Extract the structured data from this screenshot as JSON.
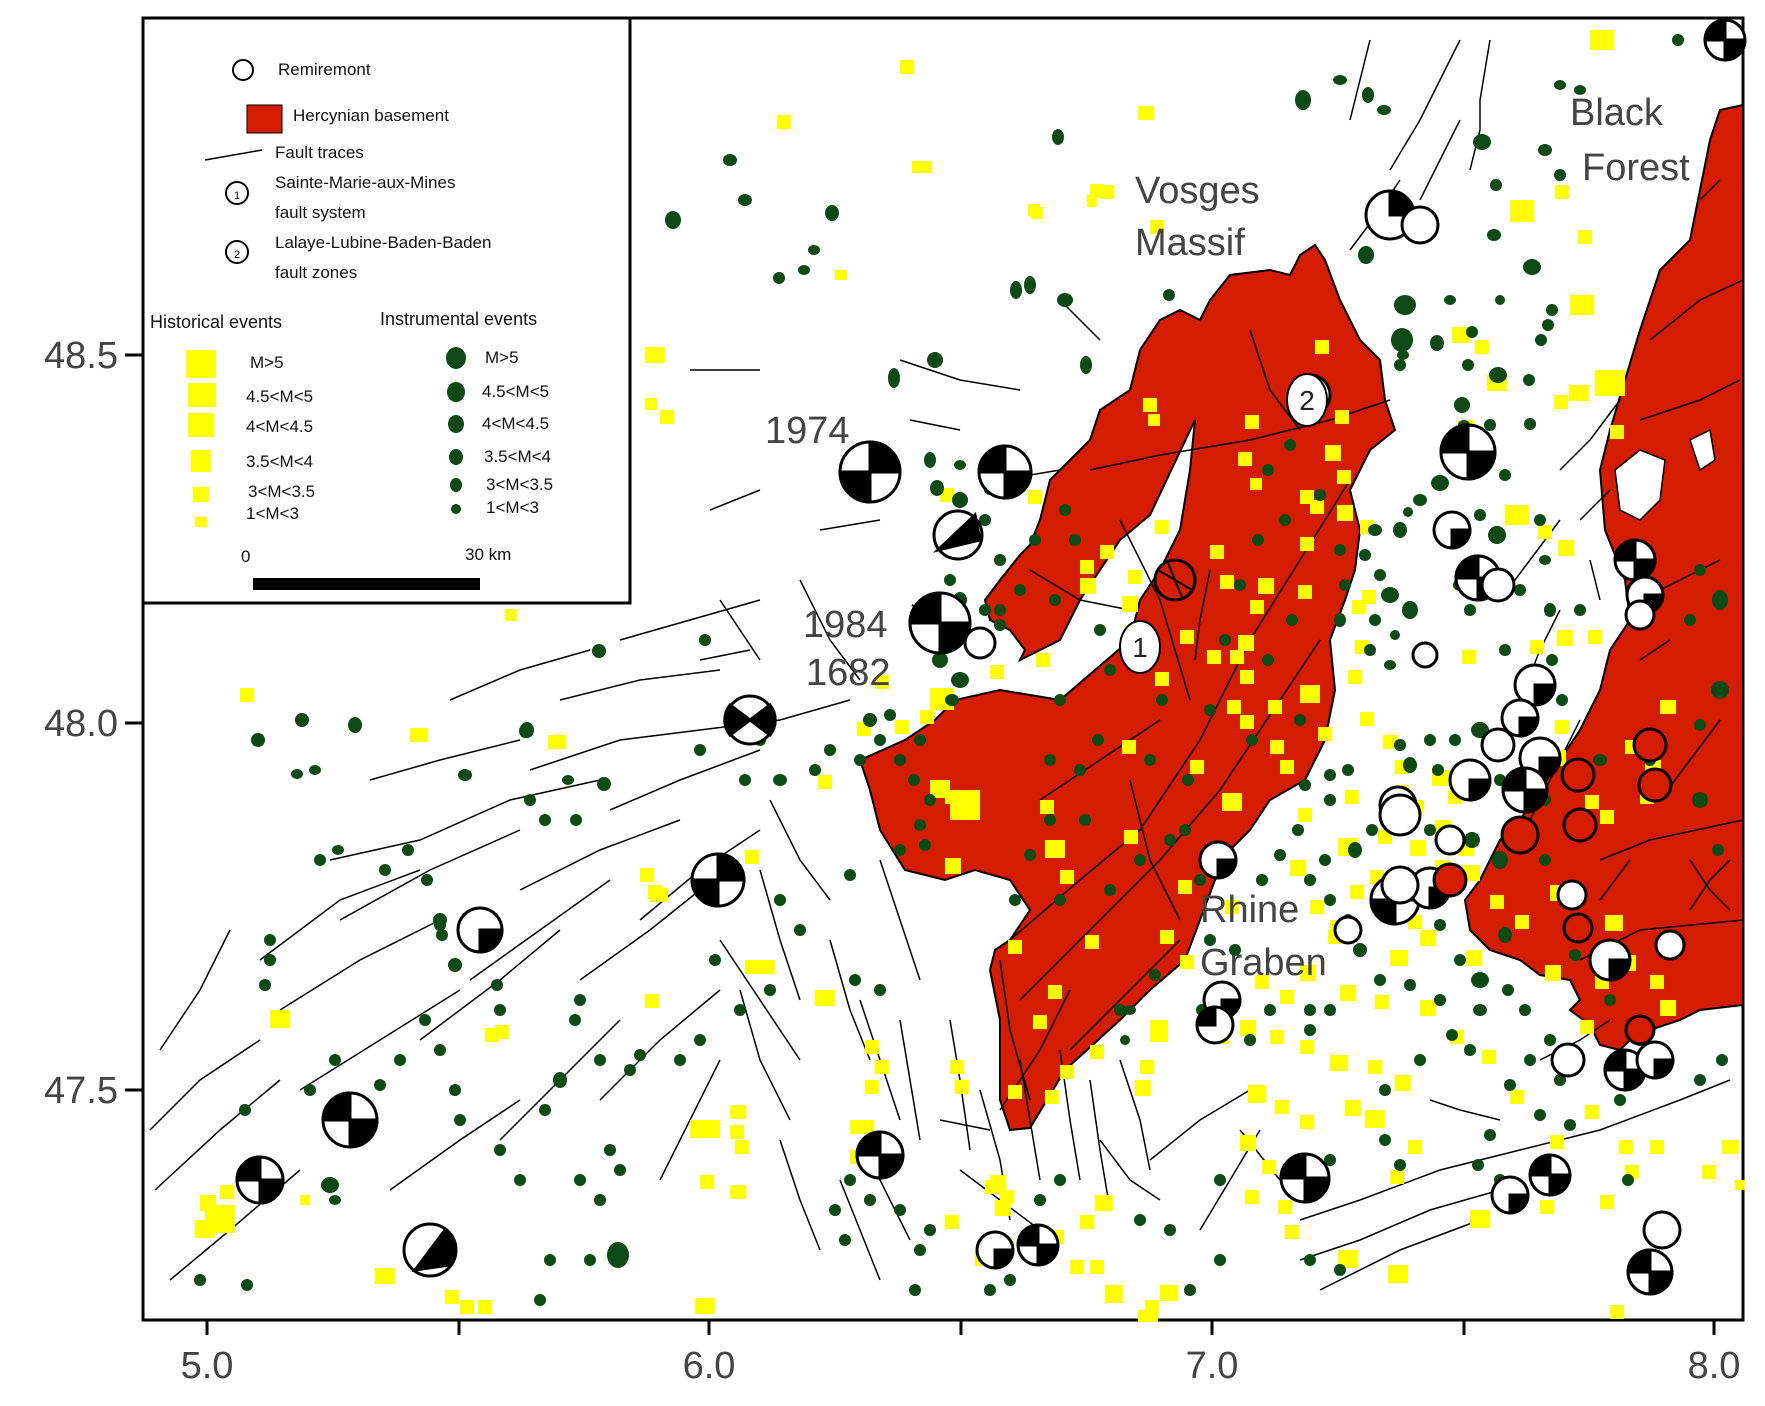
{
  "colors": {
    "hercynian": "#d41c00",
    "historical": "#ffff00",
    "instrumental": "#0e4a16",
    "fault": "#000000",
    "axis": "#000000"
  },
  "axes": {
    "x_ticks": [
      "5.0",
      "6.0",
      "7.0",
      "8.0"
    ],
    "y_ticks": [
      "48.5",
      "48.0",
      "47.5"
    ]
  },
  "labels": {
    "vosges_1": "Vosges",
    "vosges_2": "Massif",
    "black_1": "Black",
    "black_2": "Forest",
    "rhine_1": "Rhine",
    "rhine_2": "Graben",
    "year_1974": "1974",
    "year_1984": "1984",
    "year_1682": "1682",
    "marker_1": "1",
    "marker_2": "2"
  },
  "legend": {
    "remiremont": "Remiremont",
    "hercynian": "Hercynian basement",
    "faults": "Fault traces",
    "smm_1": "Sainte-Marie-aux-Mines",
    "smm_2": "fault system",
    "llbb_1": "Lalaye-Lubine-Baden-Baden",
    "llbb_2": "fault zones",
    "historical_title": "Historical events",
    "instrumental_title": "Instrumental events",
    "magnitudes": [
      "M>5",
      "4.5<M<5",
      "4<M<4.5",
      "3.5<M<4",
      "3<M<3.5",
      "1<M<3"
    ],
    "scale_start": "0",
    "scale_end": "30 km"
  }
}
